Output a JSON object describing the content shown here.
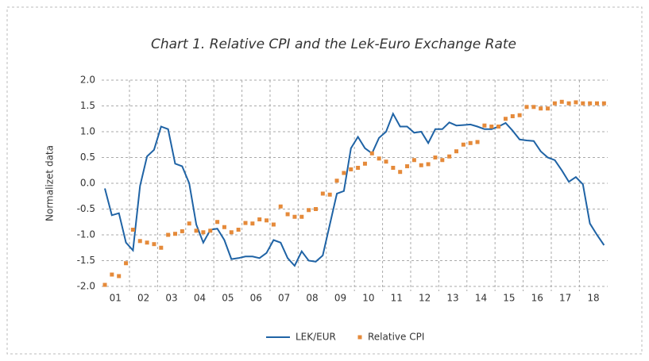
{
  "chart_data": {
    "type": "line",
    "title": "Chart 1. Relative CPI and the Lek-Euro Exchange Rate",
    "y_label": "Normalizet data",
    "categories": [
      null,
      "01",
      null,
      null,
      null,
      "02",
      null,
      null,
      null,
      "03",
      null,
      null,
      null,
      "04",
      null,
      null,
      null,
      "05",
      null,
      null,
      null,
      "06",
      null,
      null,
      null,
      "07",
      null,
      null,
      null,
      "08",
      null,
      null,
      null,
      "09",
      null,
      null,
      null,
      "10",
      null,
      null,
      null,
      "11",
      null,
      null,
      null,
      "12",
      null,
      null,
      null,
      "13",
      null,
      null,
      null,
      "14",
      null,
      null,
      null,
      "15",
      null,
      null,
      null,
      "16",
      null,
      null,
      null,
      "17",
      null,
      null,
      null,
      "18",
      null,
      null
    ],
    "series": [
      {
        "name": "LEK/EUR",
        "color": "#1f63a5",
        "style": "line",
        "values": [
          -0.1,
          -0.62,
          -0.58,
          -1.15,
          -1.3,
          -0.05,
          0.52,
          0.65,
          1.1,
          1.05,
          0.38,
          0.33,
          0.0,
          -0.8,
          -1.15,
          -0.9,
          -0.88,
          -1.1,
          -1.47,
          -1.45,
          -1.42,
          -1.42,
          -1.45,
          -1.35,
          -1.1,
          -1.15,
          -1.45,
          -1.6,
          -1.32,
          -1.5,
          -1.52,
          -1.4,
          -0.8,
          -0.2,
          -0.15,
          0.68,
          0.9,
          0.68,
          0.58,
          0.88,
          1.0,
          1.35,
          1.1,
          1.1,
          0.98,
          1.0,
          0.78,
          1.05,
          1.05,
          1.18,
          1.12,
          1.13,
          1.14,
          1.1,
          1.05,
          1.05,
          1.1,
          1.17,
          1.02,
          0.85,
          0.83,
          0.82,
          0.62,
          0.5,
          0.45,
          0.25,
          0.03,
          0.12,
          -0.02,
          -0.78,
          -1.0,
          -1.2
        ]
      },
      {
        "name": "Relative CPI",
        "color": "#e58a3a",
        "style": "dots",
        "values": [
          -1.97,
          -1.77,
          -1.8,
          -1.55,
          -0.9,
          -1.12,
          -1.15,
          -1.18,
          -1.25,
          -1.0,
          -0.98,
          -0.93,
          -0.78,
          -0.92,
          -0.95,
          -0.92,
          -0.75,
          -0.85,
          -0.95,
          -0.9,
          -0.77,
          -0.78,
          -0.7,
          -0.72,
          -0.8,
          -0.45,
          -0.6,
          -0.65,
          -0.65,
          -0.52,
          -0.5,
          -0.2,
          -0.22,
          0.05,
          0.2,
          0.27,
          0.3,
          0.38,
          0.58,
          0.48,
          0.42,
          0.3,
          0.22,
          0.33,
          0.45,
          0.35,
          0.37,
          0.5,
          0.45,
          0.52,
          0.62,
          0.75,
          0.78,
          0.8,
          1.12,
          1.1,
          1.1,
          1.25,
          1.3,
          1.32,
          1.48,
          1.48,
          1.45,
          1.45,
          1.55,
          1.58,
          1.55,
          1.57,
          1.55,
          1.55,
          1.55,
          1.55
        ]
      }
    ],
    "ylim": [
      -2,
      2
    ],
    "yticks": [
      {
        "value": -2,
        "label": "-2.0"
      },
      -1.5,
      {
        "value": -1,
        "label": "-1.0"
      },
      -0.5,
      {
        "value": 0,
        "label": "0.0"
      },
      0.5,
      {
        "value": 1,
        "label": "1.0"
      },
      1.5,
      {
        "value": 2,
        "label": "2.0"
      }
    ],
    "grid": true,
    "legend": "bottom"
  }
}
